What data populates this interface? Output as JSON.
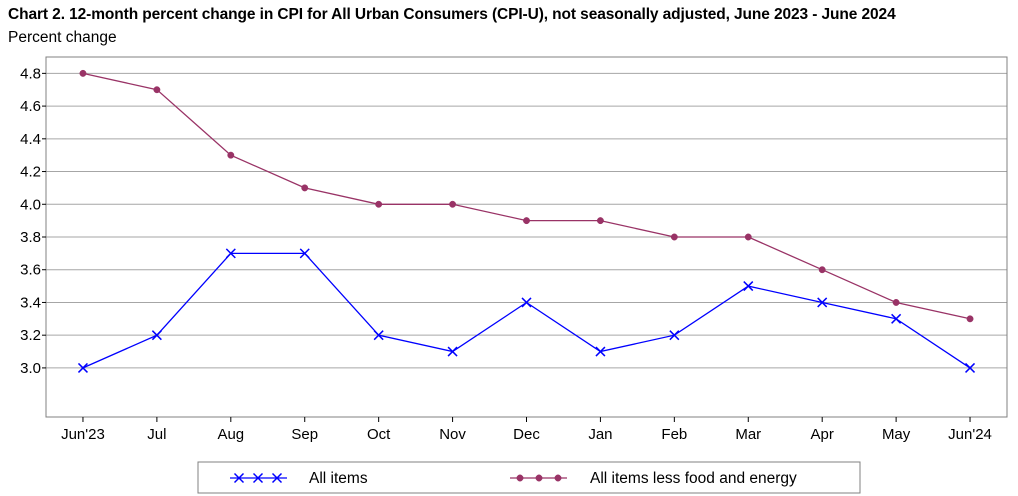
{
  "chart_data": {
    "type": "line",
    "title": "Chart 2. 12-month percent change in CPI for All Urban Consumers (CPI-U), not seasonally adjusted, June 2023 - June 2024",
    "ylabel": "Percent change",
    "xlabel": "",
    "categories": [
      "Jun'23",
      "Jul",
      "Aug",
      "Sep",
      "Oct",
      "Nov",
      "Dec",
      "Jan",
      "Feb",
      "Mar",
      "Apr",
      "May",
      "Jun'24"
    ],
    "ylim": [
      2.7,
      4.9
    ],
    "yticks": [
      3.0,
      3.2,
      3.4,
      3.6,
      3.8,
      4.0,
      4.2,
      4.4,
      4.6,
      4.8
    ],
    "ytick_labels": [
      "3.0",
      "3.2",
      "3.4",
      "3.6",
      "3.8",
      "4.0",
      "4.2",
      "4.4",
      "4.6",
      "4.8"
    ],
    "grid": true,
    "legend_position": "bottom",
    "series": [
      {
        "name": "All items",
        "color": "#0000ff",
        "marker": "x",
        "values": [
          3.0,
          3.2,
          3.7,
          3.7,
          3.2,
          3.1,
          3.4,
          3.1,
          3.2,
          3.5,
          3.4,
          3.3,
          3.0
        ]
      },
      {
        "name": "All items less food and energy",
        "color": "#993366",
        "marker": "circle",
        "values": [
          4.8,
          4.7,
          4.3,
          4.1,
          4.0,
          4.0,
          3.9,
          3.9,
          3.8,
          3.8,
          3.6,
          3.4,
          3.3
        ]
      }
    ]
  }
}
